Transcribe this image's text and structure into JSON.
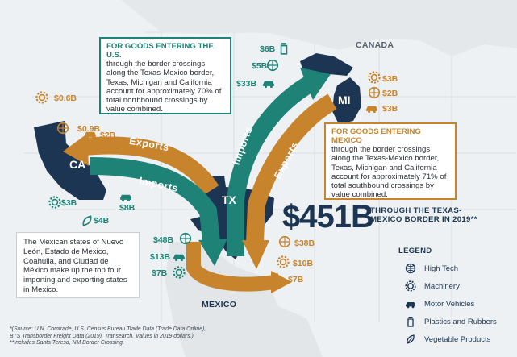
{
  "map": {
    "labels": {
      "canada": "CANADA",
      "mexico": "MEXICO"
    },
    "states": {
      "ca": "CA",
      "tx": "TX",
      "mi": "MI"
    },
    "flows": {
      "ca_exports": "Exports",
      "ca_imports": "Imports",
      "mi_imports": "Imports",
      "mi_exports": "Exports"
    },
    "colors": {
      "navy": "#1c3552",
      "teal": "#1e8276",
      "orange": "#c8842c"
    }
  },
  "callout_us": {
    "title": "FOR GOODS ENTERING THE U.S.",
    "body": "through the border crossings along the Texas-Mexico border, Texas, Michigan and California account for approximately 70% of total northbound crossings by value combined."
  },
  "callout_mexico": {
    "title": "FOR GOODS ENTERING MEXICO",
    "body": "through the border crossings along the Texas-Mexico border, Texas, Michigan and California account for approximately 71% of total southbound crossings by value combined."
  },
  "callout_states": {
    "body": "The Mexican states of Nuevo León, Estado de Mexico, Coahuila, and Ciudad de México make up the top four importing and exporting states in Mexico."
  },
  "headline": {
    "value": "$451B",
    "caption": "THROUGH THE TEXAS-MEXICO BORDER IN 2019**"
  },
  "values": {
    "michigan_imports": [
      {
        "value": "$6B",
        "icon": "plastics-icon"
      },
      {
        "value": "$5B",
        "icon": "hightech-icon"
      },
      {
        "value": "$33B",
        "icon": "vehicle-icon"
      }
    ],
    "michigan_exports": [
      {
        "value": "$3B",
        "icon": "machinery-icon"
      },
      {
        "value": "$2B",
        "icon": "hightech-icon"
      },
      {
        "value": "$3B",
        "icon": "vehicle-icon"
      }
    ],
    "california_exports": [
      {
        "value": "$0.6B",
        "icon": "machinery-icon"
      },
      {
        "value": "$0.9B",
        "icon": "hightech-icon"
      },
      {
        "value": "$2B",
        "icon": "vehicle-icon"
      }
    ],
    "california_imports": [
      {
        "value": "$3B",
        "icon": "machinery-icon"
      },
      {
        "value": "$8B",
        "icon": "vehicle-icon"
      },
      {
        "value": "$4B",
        "icon": "vegetable-icon"
      }
    ],
    "texas_imports": [
      {
        "value": "$48B",
        "icon": "hightech-icon"
      },
      {
        "value": "$13B",
        "icon": "vehicle-icon"
      },
      {
        "value": "$7B",
        "icon": "machinery-icon"
      }
    ],
    "texas_exports": [
      {
        "value": "$38B",
        "icon": "hightech-icon"
      },
      {
        "value": "$10B",
        "icon": "machinery-icon"
      },
      {
        "value": "$7B",
        "icon": "plastics-icon"
      }
    ]
  },
  "legend": {
    "title": "LEGEND",
    "items": [
      {
        "label": "High Tech",
        "icon": "hightech-icon"
      },
      {
        "label": "Machinery",
        "icon": "machinery-icon"
      },
      {
        "label": "Motor Vehicles",
        "icon": "vehicle-icon"
      },
      {
        "label": "Plastics and Rubbers",
        "icon": "plastics-icon"
      },
      {
        "label": "Vegetable Products",
        "icon": "vegetable-icon"
      }
    ]
  },
  "footnote": [
    "*(Source: U.N. Comtrade, U.S. Census Bureau Trade Data (Trade Data Online),",
    "BTS Transborder Freight Data (2019), Transearch. Values in 2019 dollars.)",
    "**Includes Santa Teresa, NM Border Crossing."
  ]
}
